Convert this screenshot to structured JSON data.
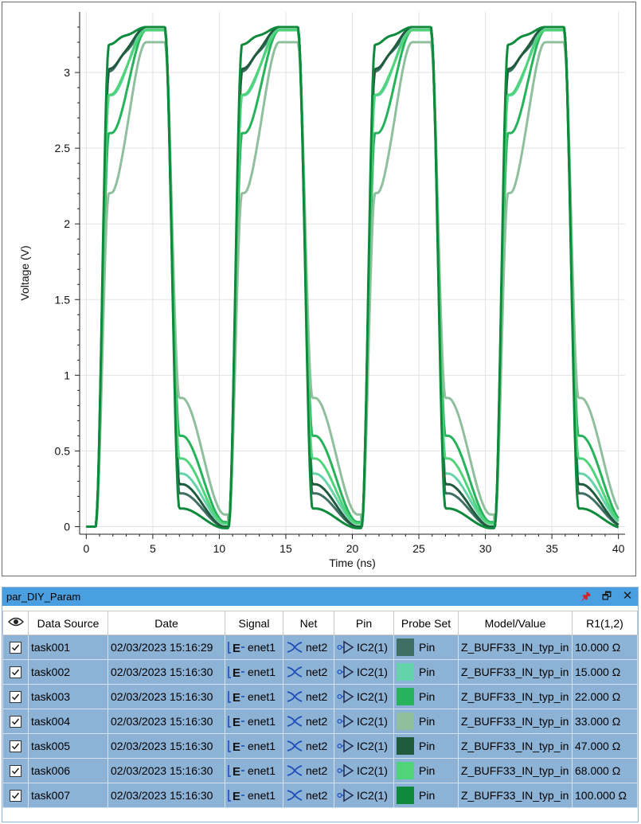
{
  "chart_data": {
    "type": "line",
    "title": "",
    "xlabel": "Time (ns)",
    "ylabel": "Voltage (V)",
    "xlim": [
      -0.5,
      40.5
    ],
    "ylim": [
      -0.05,
      3.4
    ],
    "xticks": [
      0,
      5,
      10,
      15,
      20,
      25,
      30,
      35,
      40
    ],
    "yticks": [
      0,
      0.5,
      1,
      1.5,
      2,
      2.5,
      3
    ],
    "xtick_labels": [
      "0",
      "5",
      "10",
      "15",
      "20",
      "25",
      "30",
      "35",
      "40"
    ],
    "ytick_labels": [
      "0",
      "0.5",
      "1",
      "1.5",
      "2",
      "2.5",
      "3"
    ],
    "grid": true,
    "period_ns": 10,
    "rise_start_ns": 0.7,
    "fall_start_ns": 5.9,
    "series": [
      {
        "r1_ohm": 10,
        "color": "#3f6e63",
        "peak_v": 3.33,
        "settle_v": 3.28,
        "high_shelf_v": 3.0,
        "low_shelf_v": 0.22,
        "undershoot_v": 0.0
      },
      {
        "r1_ohm": 15,
        "color": "#64d3a9",
        "peak_v": 3.3,
        "settle_v": 3.3,
        "high_shelf_v": 2.85,
        "low_shelf_v": 0.35,
        "undershoot_v": 0.02
      },
      {
        "r1_ohm": 22,
        "color": "#27b35c",
        "peak_v": 3.28,
        "settle_v": 3.28,
        "high_shelf_v": 2.6,
        "low_shelf_v": 0.6,
        "undershoot_v": 0.03
      },
      {
        "r1_ohm": 33,
        "color": "#8fbf9c",
        "peak_v": 3.22,
        "settle_v": 3.2,
        "high_shelf_v": 2.2,
        "low_shelf_v": 0.85,
        "undershoot_v": 0.08
      },
      {
        "r1_ohm": 47,
        "color": "#1f5b3c",
        "peak_v": 3.33,
        "settle_v": 3.3,
        "high_shelf_v": 3.02,
        "low_shelf_v": 0.28,
        "undershoot_v": 0.0
      },
      {
        "r1_ohm": 68,
        "color": "#4fd47a",
        "peak_v": 3.3,
        "settle_v": 3.28,
        "high_shelf_v": 2.85,
        "low_shelf_v": 0.45,
        "undershoot_v": 0.02
      },
      {
        "r1_ohm": 100,
        "color": "#0e8a3c",
        "peak_v": 3.33,
        "settle_v": 3.3,
        "high_shelf_v": 3.18,
        "low_shelf_v": 0.12,
        "undershoot_v": -0.01
      }
    ]
  },
  "panel": {
    "title": "par_DIY_Param",
    "pin_icon": "pin-icon",
    "restore_icon": "restore-icon",
    "close_icon": "close-icon",
    "columns": [
      "",
      "Data Source",
      "Date",
      "Signal",
      "Net",
      "Pin",
      "Probe Set",
      "Model/Value",
      "R1(1,2)"
    ],
    "rows": [
      {
        "source": "task001",
        "date": "02/03/2023 15:16:29",
        "signal": "enet1",
        "net": "net2",
        "pin": "IC2(1)",
        "probe": "Pin",
        "swatch": "#3f6e63",
        "model": "Z_BUFF33_IN_typ_in",
        "r1": "10.000 Ω",
        "checked": true
      },
      {
        "source": "task002",
        "date": "02/03/2023 15:16:30",
        "signal": "enet1",
        "net": "net2",
        "pin": "IC2(1)",
        "probe": "Pin",
        "swatch": "#64d3a9",
        "model": "Z_BUFF33_IN_typ_in",
        "r1": "15.000 Ω",
        "checked": true
      },
      {
        "source": "task003",
        "date": "02/03/2023 15:16:30",
        "signal": "enet1",
        "net": "net2",
        "pin": "IC2(1)",
        "probe": "Pin",
        "swatch": "#27b35c",
        "model": "Z_BUFF33_IN_typ_in",
        "r1": "22.000 Ω",
        "checked": true
      },
      {
        "source": "task004",
        "date": "02/03/2023 15:16:30",
        "signal": "enet1",
        "net": "net2",
        "pin": "IC2(1)",
        "probe": "Pin",
        "swatch": "#8fbf9c",
        "model": "Z_BUFF33_IN_typ_in",
        "r1": "33.000 Ω",
        "checked": true
      },
      {
        "source": "task005",
        "date": "02/03/2023 15:16:30",
        "signal": "enet1",
        "net": "net2",
        "pin": "IC2(1)",
        "probe": "Pin",
        "swatch": "#1f5b3c",
        "model": "Z_BUFF33_IN_typ_in",
        "r1": "47.000 Ω",
        "checked": true
      },
      {
        "source": "task006",
        "date": "02/03/2023 15:16:30",
        "signal": "enet1",
        "net": "net2",
        "pin": "IC2(1)",
        "probe": "Pin",
        "swatch": "#4fd47a",
        "model": "Z_BUFF33_IN_typ_in",
        "r1": "68.000 Ω",
        "checked": true
      },
      {
        "source": "task007",
        "date": "02/03/2023 15:16:30",
        "signal": "enet1",
        "net": "net2",
        "pin": "IC2(1)",
        "probe": "Pin",
        "swatch": "#0e8a3c",
        "model": "Z_BUFF33_IN_typ_in",
        "r1": "100.000 Ω",
        "checked": true
      }
    ]
  }
}
